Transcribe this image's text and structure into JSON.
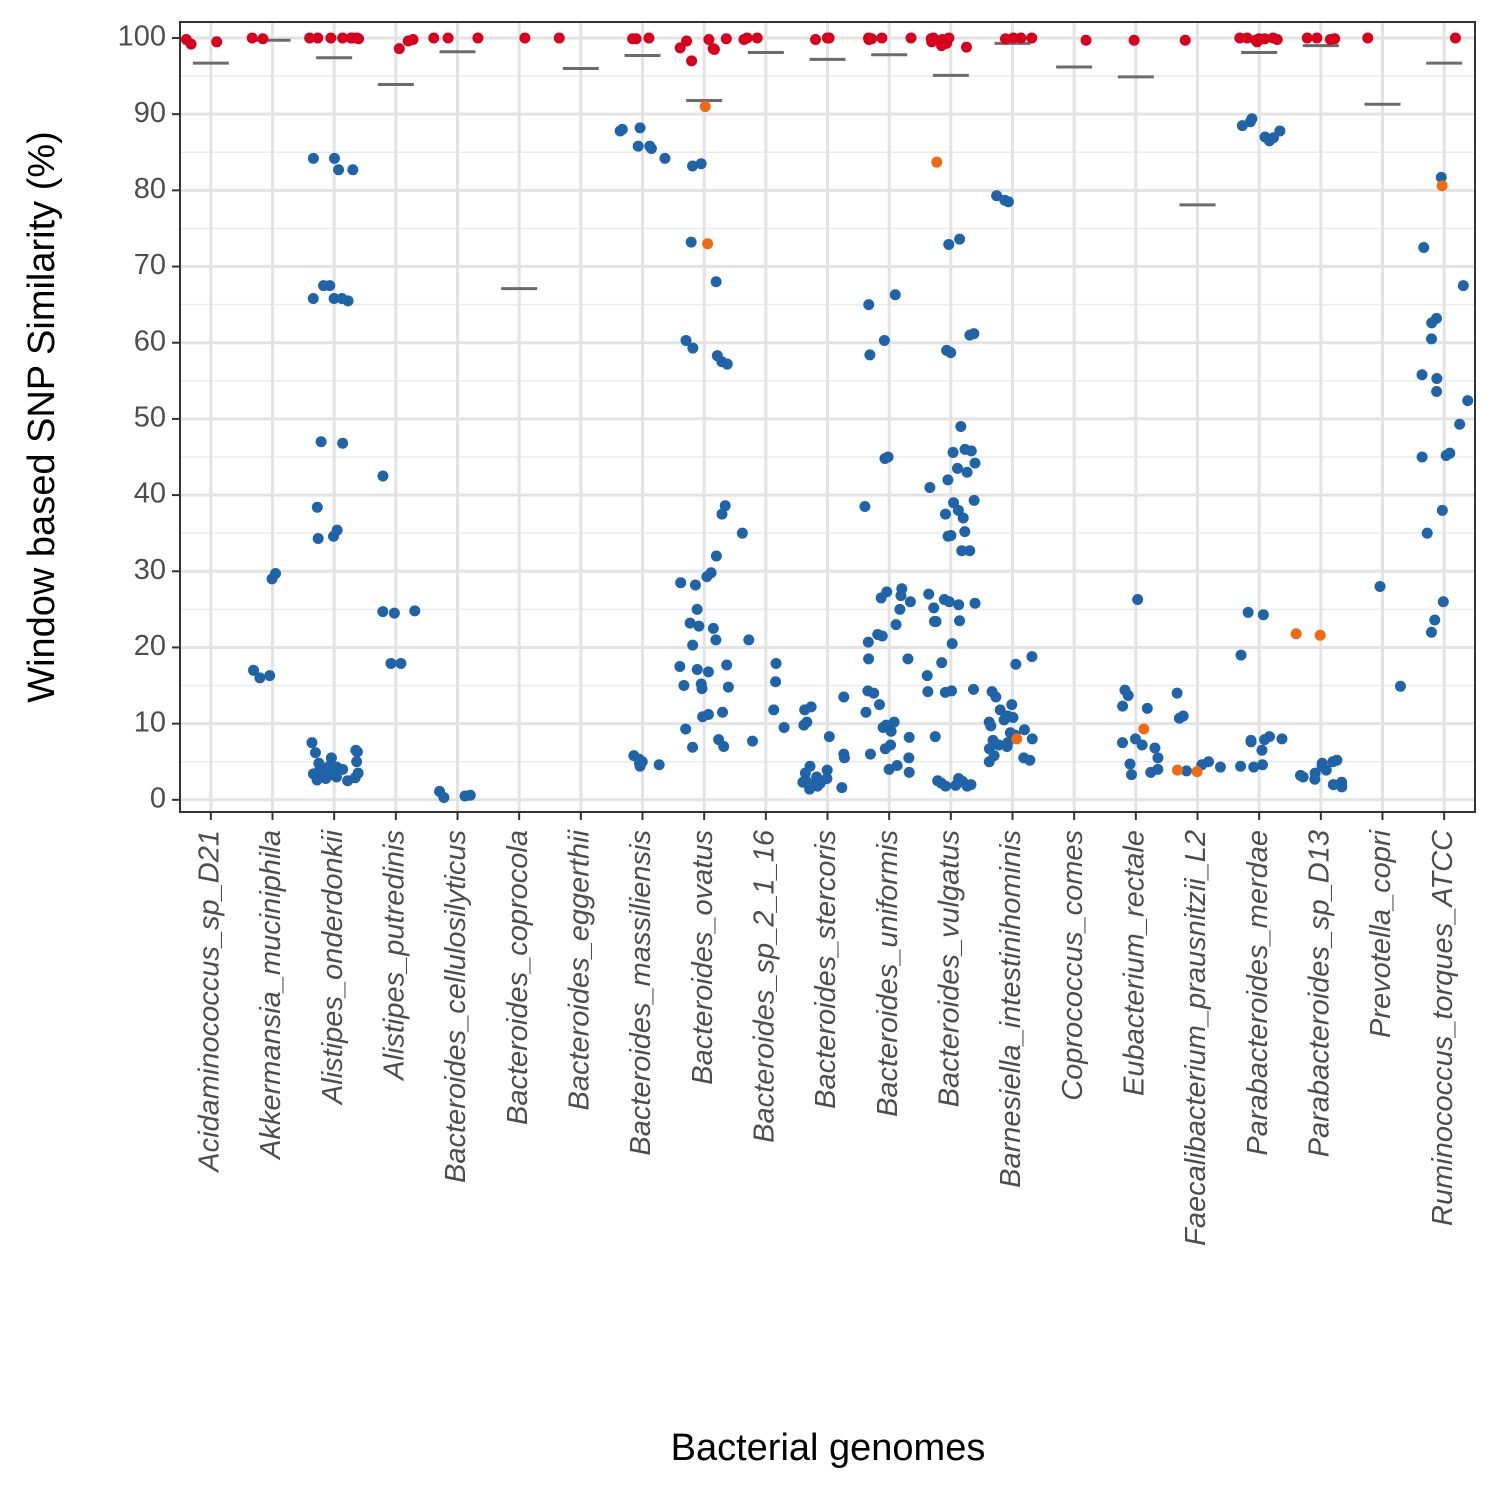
{
  "chart_data": {
    "type": "strip",
    "x_label": "Bacterial genomes",
    "y_label": "Window based SNP Similarity (%)",
    "categories": [
      "Acidaminococcus_sp_D21",
      "Akkermansia_muciniphila",
      "Alistipes_onderdonkii",
      "Alistipes_putredinis",
      "Bacteroides_cellulosilyticus",
      "Bacteroides_coprocola",
      "Bacteroides_eggerthii",
      "Bacteroides_massiliensis",
      "Bacteroides_ovatus",
      "Bacteroides_sp_2_1_16",
      "Bacteroides_stercoris",
      "Bacteroides_uniformis",
      "Bacteroides_vulgatus",
      "Barnesiella_intestinihominis",
      "Coprococcus_comes",
      "Eubacterium_rectale",
      "Faecalibacterium_prausnitzii_L2",
      "Parabacteroides_merdae",
      "Parabacteroides_sp_D13",
      "Prevotella_copri",
      "Ruminococcus_torques_ATCC"
    ],
    "ylim": [
      -1.6,
      102.1
    ],
    "yticks": [
      0,
      10,
      20,
      30,
      40,
      50,
      60,
      70,
      80,
      90,
      100
    ],
    "yminorticks": [
      5,
      15,
      25,
      35,
      45,
      55,
      65,
      75,
      85,
      95
    ],
    "grid": true,
    "threshold_color": "#6b6b6b",
    "thresholds": [
      96.7,
      99.7,
      97.4,
      93.9,
      98.2,
      67.1,
      96,
      97.7,
      91.8,
      98.1,
      97.2,
      97.8,
      95.1,
      99.3,
      96.2,
      94.9,
      78.1,
      98.1,
      99,
      91.3,
      96.7
    ],
    "series": [
      {
        "color": "#1f63a8",
        "values": [
          [],
          [
            29,
            29.7,
            17,
            16,
            16.3
          ],
          [
            84.2,
            84.2,
            82.7,
            82.7,
            67.5,
            67.5,
            65.5,
            65.8,
            65.8,
            65.8,
            47,
            46.8,
            38.4,
            35.4,
            34.6,
            34.3,
            7.5,
            6.5,
            6.3,
            6.2,
            5.5,
            5,
            4.8,
            4.5,
            4.3,
            4,
            3.8,
            3.6,
            3.5,
            3.3,
            3.2,
            3,
            2.8,
            2.6,
            2.5,
            4.2,
            3.9,
            3.4,
            2.9
          ],
          [
            42.5,
            24.8,
            24.5,
            24.7,
            17.9,
            17.9
          ],
          [
            0.6,
            0.5,
            1.1,
            0.3
          ],
          [],
          [],
          [
            88.2,
            88,
            87.8,
            85.8,
            85.5,
            85.8,
            84.2,
            5.8,
            5.3,
            5,
            4.8,
            4.6,
            4.4
          ],
          [
            83.5,
            83.2,
            73.2,
            68,
            60.3,
            59.3,
            58.3,
            57.5,
            57.2,
            38.6,
            37.5,
            32,
            29.8,
            29.3,
            28.5,
            28.2,
            25,
            23.2,
            22.8,
            22.5,
            21,
            20.3,
            17.7,
            17.5,
            17.1,
            16.8,
            15.2,
            15,
            14.8,
            14.6,
            11.5,
            11.2,
            10.9,
            9.3,
            7.9,
            7,
            6.9
          ],
          [
            35,
            21,
            17.9,
            15.5,
            11.8,
            9.5,
            7.7
          ],
          [
            13.5,
            12.2,
            11.8,
            10.2,
            9.8,
            8.3,
            6,
            5.5,
            4.4,
            3.9,
            3.5,
            3,
            2.8,
            2.5,
            2.2,
            2,
            1.8,
            1.6,
            1.4,
            1.9,
            2.3
          ],
          [
            66.3,
            65,
            60.3,
            58.4,
            45,
            44.8,
            38.5,
            27.7,
            27.3,
            26.8,
            26.5,
            26,
            25,
            23,
            21.7,
            21.5,
            20.7,
            18.5,
            18.5,
            14.3,
            14,
            12.5,
            11.5,
            10.2,
            9.8,
            9.5,
            9,
            8.2,
            7.2,
            6.7,
            6,
            5.5,
            4.5,
            4,
            3.6
          ],
          [
            73.6,
            72.9,
            61.2,
            61,
            59,
            58.7,
            49,
            46,
            45.8,
            45.6,
            44.2,
            43.5,
            43,
            42,
            41,
            39.3,
            39,
            38,
            37.5,
            37,
            35.2,
            34.7,
            34.6,
            32.7,
            32.7,
            27,
            26.3,
            26,
            25.8,
            25.6,
            25.2,
            23.5,
            23.4,
            23.4,
            20.5,
            18,
            16.3,
            14.5,
            14.3,
            14.2,
            14.1,
            8.3,
            2.8,
            2.5,
            2.4,
            2.2,
            2,
            1.9,
            1.8,
            1.8
          ],
          [
            79.3,
            78.7,
            78.5,
            18.8,
            17.8,
            14.2,
            13.5,
            12.5,
            11.8,
            11,
            10.8,
            10.5,
            10.2,
            9.7,
            9.2,
            8.8,
            8.5,
            8,
            7.8,
            7.5,
            7.2,
            7,
            6.7,
            5.8,
            5.5,
            5.2,
            5
          ],
          [],
          [
            26.3,
            14.4,
            13.7,
            12.3,
            12,
            8,
            7.5,
            7.2,
            6.8,
            5.5,
            4.7,
            4,
            3.6,
            3.3
          ],
          [
            14,
            11,
            10.7,
            5,
            4.6,
            4.3,
            3.8
          ],
          [
            89.4,
            89,
            88.5,
            87.8,
            87,
            86.9,
            86.5,
            24.6,
            24.3,
            19,
            8.3,
            8,
            7.9,
            7.8,
            7.6,
            6.5,
            4.6,
            4.4,
            4.3
          ],
          [
            5.2,
            5,
            4.8,
            4.4,
            3.9,
            3.5,
            3.2,
            3,
            2.7,
            2.3,
            2,
            1.7
          ],
          [
            28,
            14.9
          ],
          [
            81.7,
            72.5,
            67.5,
            63.2,
            62.6,
            60.5,
            55.8,
            55.3,
            53.6,
            52.4,
            49.3,
            45.5,
            45.2,
            45,
            38,
            35,
            26,
            23.6,
            22
          ]
        ]
      },
      {
        "color": "#f26a0f",
        "values": [
          [],
          [],
          [],
          [],
          [],
          [],
          [],
          [],
          [
            91,
            73
          ],
          [],
          [],
          [],
          [
            83.7
          ],
          [
            8
          ],
          [],
          [
            9.3
          ],
          [
            3.7,
            3.9
          ],
          [],
          [
            21.8,
            21.6
          ],
          [],
          [
            80.6
          ]
        ]
      },
      {
        "color": "#d9001e",
        "values": [
          [
            99.8,
            99.5,
            99.2
          ],
          [
            100,
            99.9
          ],
          [
            100,
            100,
            100,
            100,
            100,
            100,
            100,
            99.9
          ],
          [
            99.8,
            99.6,
            98.6
          ],
          [
            100,
            100,
            100
          ],
          [
            100
          ],
          [
            100
          ],
          [
            100,
            99.9,
            99.9
          ],
          [
            99.9,
            99.8,
            99.6,
            98.6,
            98.5,
            98.7,
            97
          ],
          [
            100,
            100,
            99.8
          ],
          [
            99.8,
            100,
            100,
            100
          ],
          [
            100,
            99.8,
            100,
            100,
            99.9
          ],
          [
            100,
            99.8,
            99.5,
            99.6,
            99.9,
            99.3,
            99,
            98.8,
            100
          ],
          [
            100,
            100,
            100,
            99.9
          ],
          [
            99.7
          ],
          [
            99.7
          ],
          [
            99.7
          ],
          [
            100,
            100,
            99.9,
            99.7,
            99.5,
            99.8,
            100,
            99.9
          ],
          [
            100,
            100,
            99.9,
            99.8
          ],
          [
            100
          ],
          [
            100
          ]
        ]
      }
    ]
  }
}
